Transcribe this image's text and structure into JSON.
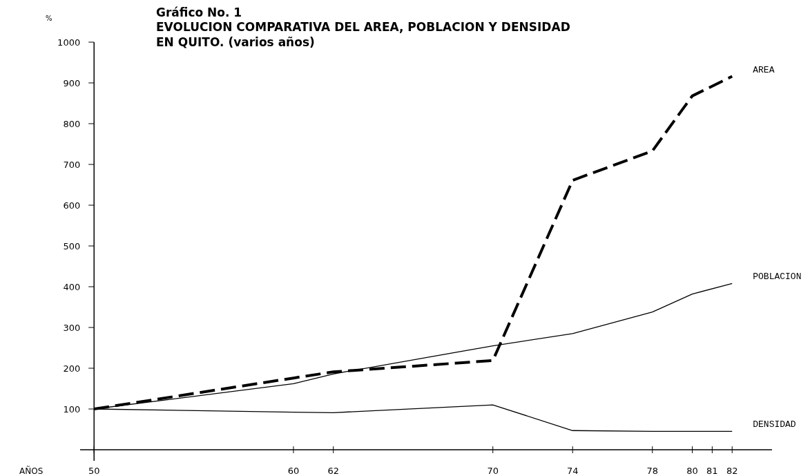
{
  "chart_data": {
    "type": "line",
    "title": "Gráfico No. 1",
    "subtitle": "EVOLUCION COMPARATIVA DEL AREA, POBLACION Y DENSIDAD\nEN QUITO.  (varios años)",
    "xlabel": "AÑOS",
    "ylabel": "%",
    "x": [
      50,
      60,
      62,
      70,
      74,
      78,
      80,
      82
    ],
    "series": [
      {
        "name": "AREA",
        "color": "#000000",
        "line_style": "dashed",
        "values": [
          100,
          176,
          191,
          219,
          661,
          733,
          868,
          916
        ]
      },
      {
        "name": "POBLACION",
        "color": "#000000",
        "line_style": "solid",
        "values": [
          100,
          162,
          186,
          255,
          285,
          338,
          382,
          408
        ]
      },
      {
        "name": "DENSIDAD",
        "color": "#000000",
        "line_style": "solid",
        "values": [
          100,
          92,
          91,
          110,
          47,
          45,
          45,
          45
        ]
      }
    ],
    "xlim": [
      49.3,
      84
    ],
    "xticks": [
      50,
      60,
      62,
      70,
      74,
      78,
      80,
      81,
      82
    ],
    "ylim": [
      0,
      1000
    ],
    "yticks": [
      100,
      200,
      300,
      400,
      500,
      600,
      700,
      800,
      900,
      1000
    ],
    "grid": false,
    "legend": false,
    "marker": "none"
  }
}
